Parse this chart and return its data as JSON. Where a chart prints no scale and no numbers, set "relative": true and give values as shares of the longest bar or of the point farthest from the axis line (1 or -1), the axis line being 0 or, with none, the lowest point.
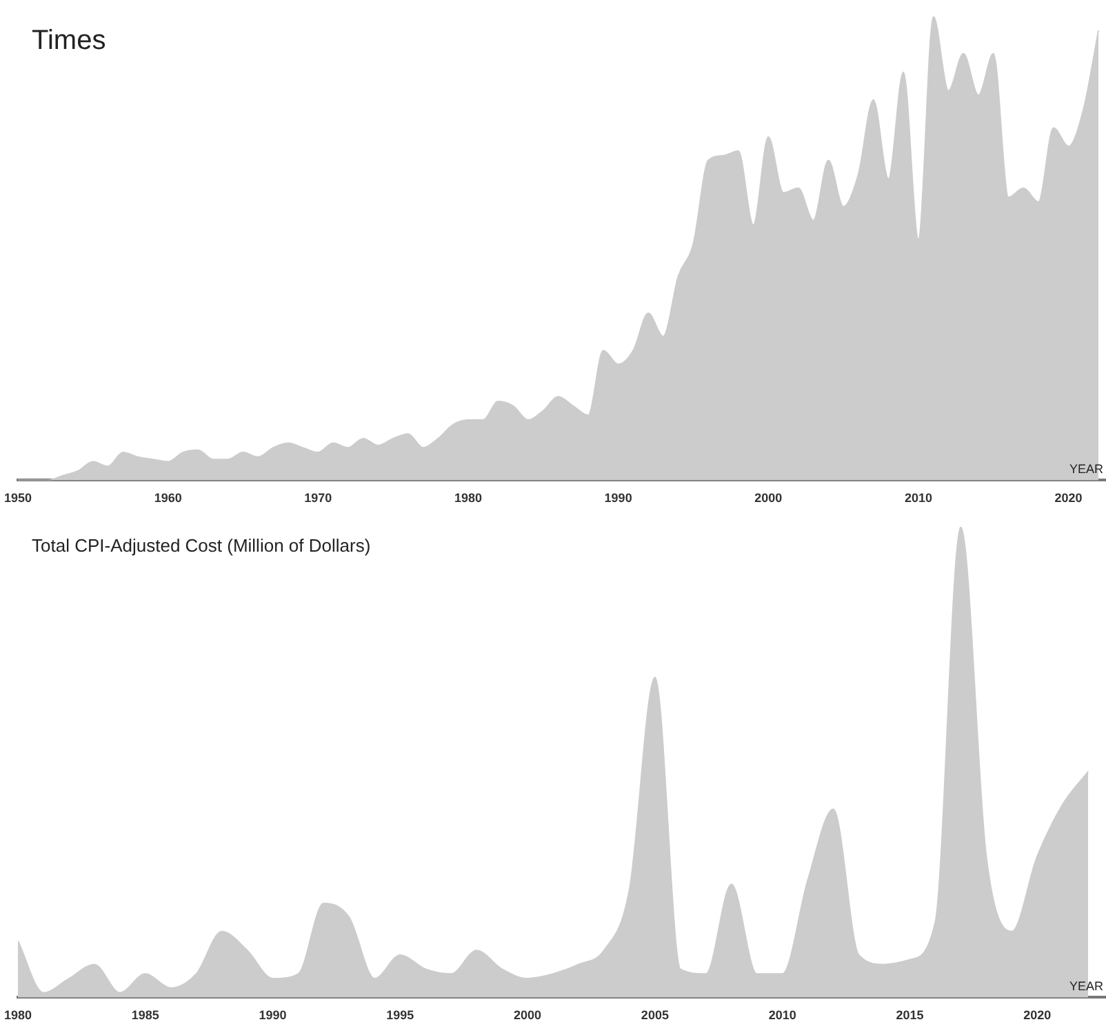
{
  "chart_data": [
    {
      "type": "area",
      "title": "Times",
      "xlabel": "YEAR",
      "relative": true,
      "xlim": [
        1950,
        2022.5
      ],
      "xticks": [
        1950,
        1960,
        1970,
        1980,
        1990,
        2000,
        2010,
        2020
      ],
      "grid": false,
      "legend": false,
      "marker": "none",
      "x": [
        1950,
        1951,
        1952,
        1953,
        1954,
        1955,
        1956,
        1957,
        1958,
        1959,
        1960,
        1961,
        1962,
        1963,
        1964,
        1965,
        1966,
        1967,
        1968,
        1969,
        1970,
        1971,
        1972,
        1973,
        1974,
        1975,
        1976,
        1977,
        1978,
        1979,
        1980,
        1981,
        1982,
        1983,
        1984,
        1985,
        1986,
        1987,
        1988,
        1989,
        1990,
        1991,
        1992,
        1993,
        1994,
        1995,
        1996,
        1997,
        1998,
        1999,
        2000,
        2001,
        2002,
        2003,
        2004,
        2005,
        2006,
        2007,
        2008,
        2009,
        2010,
        2011,
        2012,
        2013,
        2014,
        2015,
        2016,
        2017,
        2018,
        2019,
        2020,
        2021,
        2022
      ],
      "series": [
        {
          "color": "#cccccc",
          "values": [
            0,
            0,
            0,
            0.01,
            0.02,
            0.04,
            0.03,
            0.06,
            0.05,
            0.045,
            0.04,
            0.06,
            0.065,
            0.045,
            0.045,
            0.06,
            0.05,
            0.07,
            0.08,
            0.07,
            0.06,
            0.08,
            0.07,
            0.09,
            0.075,
            0.09,
            0.1,
            0.07,
            0.09,
            0.12,
            0.13,
            0.13,
            0.17,
            0.16,
            0.13,
            0.15,
            0.18,
            0.16,
            0.14,
            0.28,
            0.25,
            0.28,
            0.36,
            0.31,
            0.44,
            0.51,
            0.69,
            0.7,
            0.71,
            0.55,
            0.74,
            0.62,
            0.63,
            0.56,
            0.69,
            0.59,
            0.66,
            0.82,
            0.65,
            0.88,
            0.52,
            1,
            0.84,
            0.92,
            0.83,
            0.92,
            0.61,
            0.63,
            0.6,
            0.76,
            0.72,
            0.8,
            0.97
          ]
        }
      ]
    },
    {
      "type": "area",
      "title": "Total CPI-Adjusted Cost (Million of Dollars)",
      "xlabel": "YEAR",
      "relative": true,
      "xlim": [
        1980,
        2022.7
      ],
      "xticks": [
        1980,
        1985,
        1990,
        1995,
        2000,
        2005,
        2010,
        2015,
        2020
      ],
      "grid": false,
      "legend": false,
      "marker": "none",
      "x": [
        1980,
        1981,
        1982,
        1983,
        1984,
        1985,
        1986,
        1987,
        1988,
        1989,
        1990,
        1991,
        1992,
        1993,
        1994,
        1995,
        1996,
        1997,
        1998,
        1999,
        2000,
        2001,
        2002,
        2003,
        2004,
        2005,
        2006,
        2007,
        2008,
        2009,
        2010,
        2011,
        2012,
        2013,
        2014,
        2015,
        2016,
        2017,
        2018,
        2019,
        2020,
        2021,
        2022
      ],
      "series": [
        {
          "color": "#cccccc",
          "values": [
            0.12,
            0.01,
            0.04,
            0.07,
            0.01,
            0.05,
            0.02,
            0.05,
            0.14,
            0.1,
            0.04,
            0.05,
            0.2,
            0.17,
            0.04,
            0.09,
            0.06,
            0.05,
            0.1,
            0.06,
            0.04,
            0.05,
            0.07,
            0.1,
            0.23,
            0.68,
            0.06,
            0.05,
            0.24,
            0.05,
            0.05,
            0.25,
            0.4,
            0.09,
            0.07,
            0.08,
            0.16,
            1,
            0.3,
            0.14,
            0.3,
            0.41,
            0.48
          ]
        }
      ]
    }
  ]
}
